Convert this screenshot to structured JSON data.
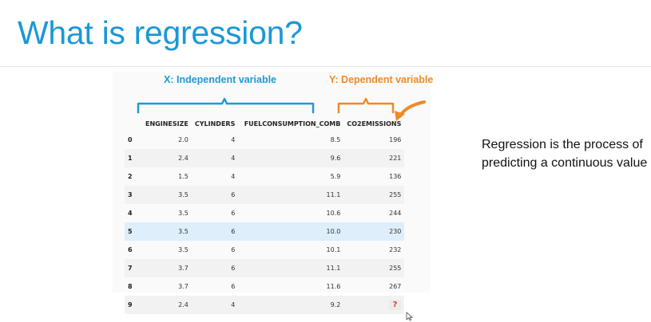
{
  "slide": {
    "title": "What is regression?",
    "x_label": "X: Independent variable",
    "y_label": "Y: Dependent variable",
    "description": "Regression is the process of predicting a continuous value",
    "colors": {
      "title": "#1a98d6",
      "x_bracket": "#1e9ad6",
      "y_bracket": "#f08a24",
      "unknown": "#e03c31"
    }
  },
  "table": {
    "headers": [
      "",
      "ENGINESIZE",
      "CYLINDERS",
      "FUELCONSUMPTION_COMB",
      "CO2EMISSIONS"
    ],
    "rows": [
      [
        "0",
        "2.0",
        "4",
        "8.5",
        "196"
      ],
      [
        "1",
        "2.4",
        "4",
        "9.6",
        "221"
      ],
      [
        "2",
        "1.5",
        "4",
        "5.9",
        "136"
      ],
      [
        "3",
        "3.5",
        "6",
        "11.1",
        "255"
      ],
      [
        "4",
        "3.5",
        "6",
        "10.6",
        "244"
      ],
      [
        "5",
        "3.5",
        "6",
        "10.0",
        "230"
      ],
      [
        "6",
        "3.5",
        "6",
        "10.1",
        "232"
      ],
      [
        "7",
        "3.7",
        "6",
        "11.1",
        "255"
      ],
      [
        "8",
        "3.7",
        "6",
        "11.6",
        "267"
      ],
      [
        "9",
        "2.4",
        "4",
        "9.2",
        "?"
      ]
    ],
    "highlighted_row": 5
  }
}
